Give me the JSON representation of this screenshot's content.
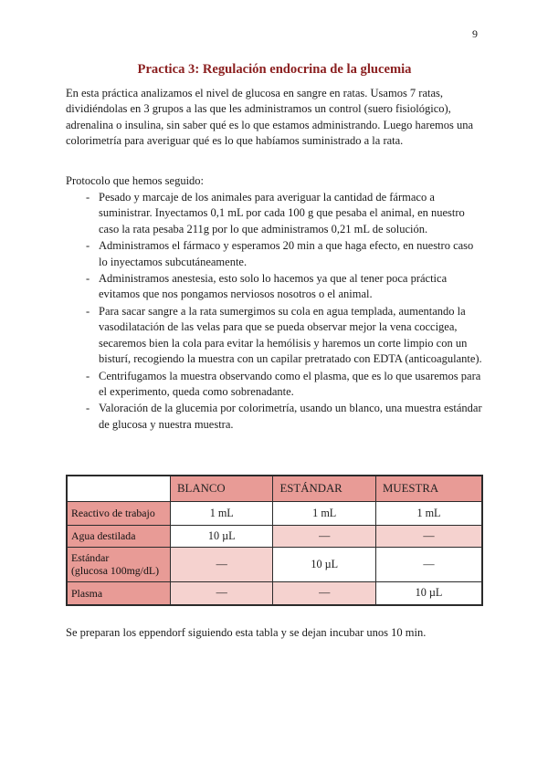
{
  "page": {
    "number": "9",
    "title": "Practica 3: Regulación endocrina de la glucemia"
  },
  "intro": "En esta práctica analizamos el nivel de glucosa en sangre en ratas. Usamos 7 ratas, dividiéndolas en 3 grupos a las que les administramos un control (suero fisiológico), adrenalina o insulina, sin saber qué es lo que estamos administrando. Luego haremos una colorimetría para averiguar qué es lo que habíamos suministrado a la rata.",
  "protocol": {
    "heading": "Protocolo que hemos seguido:",
    "bullet": "-",
    "items": [
      "Pesado y marcaje de los animales para averiguar la cantidad de fármaco a suministrar. Inyectamos 0,1 mL por cada 100 g que pesaba el animal, en nuestro caso la rata pesaba 211g por lo que administramos 0,21 mL de solución.",
      "Administramos el fármaco y esperamos 20 min a que haga efecto, en nuestro caso lo inyectamos subcutáneamente.",
      "Administramos anestesia, esto solo lo hacemos ya que al tener poca práctica evitamos que nos pongamos nerviosos nosotros o el animal.",
      "Para sacar sangre a la rata sumergimos su cola en agua templada, aumentando la vasodilatación de las velas para que se pueda observar mejor la vena coccigea, secaremos bien la cola para evitar la hemólisis y haremos un corte limpio con un bisturí, recogiendo la muestra con un capilar pretratado con EDTA (anticoagulante).",
      "Centrifugamos la muestra observando como el plasma, que es lo que usaremos para el experimento, queda como sobrenadante.",
      "Valoración de la glucemia por colorimetría, usando un blanco, una muestra estándar de glucosa y nuestra muestra."
    ]
  },
  "table": {
    "columns": [
      "BLANCO",
      "ESTÁNDAR",
      "MUESTRA"
    ],
    "rows": [
      {
        "label": "Reactivo de trabajo",
        "values": [
          "1 mL",
          "1 mL",
          "1 mL"
        ]
      },
      {
        "label": "Agua destilada",
        "values": [
          "10 µL",
          "—",
          "—"
        ]
      },
      {
        "label": "Estándar",
        "label2": "(glucosa 100mg/dL)",
        "values": [
          "—",
          "10 µL",
          "—"
        ]
      },
      {
        "label": "Plasma",
        "values": [
          "—",
          "—",
          "10 µL"
        ]
      }
    ]
  },
  "closing": "Se preparan los eppendorf siguiendo esta tabla y se dejan incubar unos 10 min.",
  "colors": {
    "title_red": "#8B2020",
    "table_header_pink": "#E89B96",
    "table_cell_pink": "#F5D2CF",
    "table_border": "#2B2B2B"
  }
}
